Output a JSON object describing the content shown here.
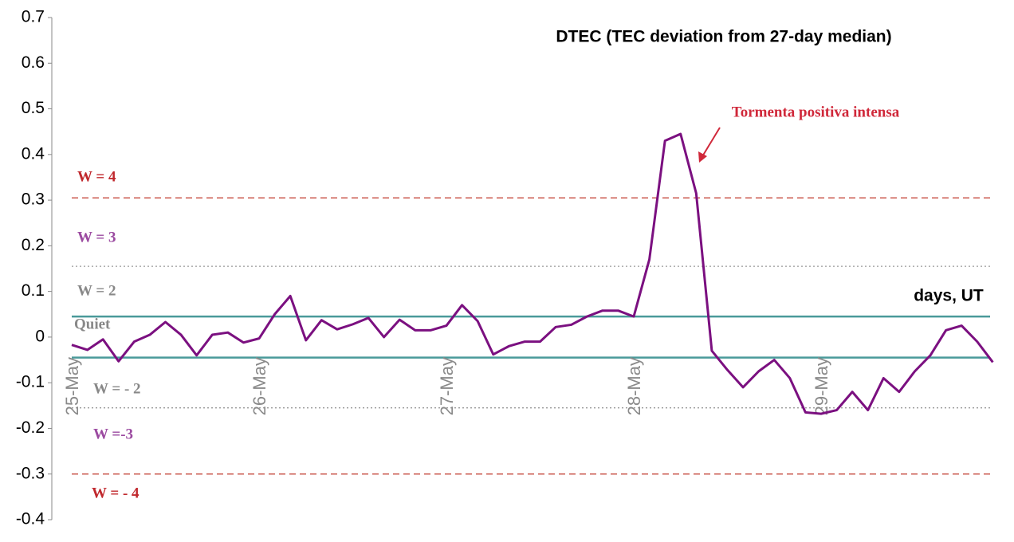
{
  "chart_data": {
    "type": "line",
    "title": "DTEC (TEC deviation from 27-day median)",
    "x_label": "days, UT",
    "annotation": "Tormenta positiva intensa",
    "categories": [
      "25-May",
      null,
      null,
      null,
      null,
      null,
      null,
      null,
      null,
      null,
      null,
      null,
      "26-May",
      null,
      null,
      null,
      null,
      null,
      null,
      null,
      null,
      null,
      null,
      null,
      "27-May",
      null,
      null,
      null,
      null,
      null,
      null,
      null,
      null,
      null,
      null,
      null,
      "28-May",
      null,
      null,
      null,
      null,
      null,
      null,
      null,
      null,
      null,
      null,
      null,
      "29-May",
      null,
      null,
      null,
      null,
      null,
      null,
      null,
      null,
      null,
      null,
      null
    ],
    "series": [
      {
        "color": "#7b1080",
        "values": [
          -0.017,
          -0.028,
          -0.005,
          -0.053,
          -0.01,
          0.005,
          0.033,
          0.005,
          -0.04,
          0.005,
          0.01,
          -0.012,
          -0.003,
          0.05,
          0.09,
          -0.007,
          0.037,
          0.017,
          0.028,
          0.042,
          0.0,
          0.038,
          0.015,
          0.015,
          0.025,
          0.07,
          0.035,
          -0.038,
          -0.02,
          -0.01,
          -0.01,
          0.022,
          0.027,
          0.045,
          0.058,
          0.058,
          0.045,
          0.17,
          0.43,
          0.445,
          0.315,
          -0.03,
          -0.072,
          -0.11,
          -0.075,
          -0.05,
          -0.09,
          -0.165,
          -0.168,
          -0.16,
          -0.12,
          -0.16,
          -0.09,
          -0.12,
          -0.075,
          -0.04,
          0.015,
          0.025,
          -0.01,
          -0.055
        ]
      }
    ],
    "ylim": [
      -0.4,
      0.7
    ],
    "yticks": [
      -0.4,
      -0.3,
      -0.2,
      -0.1,
      0,
      0.1,
      0.2,
      0.3,
      0.4,
      0.5,
      0.6,
      0.7
    ],
    "reference_lines": [
      {
        "value": 0.305,
        "color": "#c0392b",
        "style": "dashed"
      },
      {
        "value": 0.155,
        "color": "#999999",
        "style": "dotted"
      },
      {
        "value": 0.045,
        "color": "#4a9a9a",
        "style": "solid"
      },
      {
        "value": -0.045,
        "color": "#4a9a9a",
        "style": "solid"
      },
      {
        "value": -0.155,
        "color": "#999999",
        "style": "dotted"
      },
      {
        "value": -0.3,
        "color": "#c0392b",
        "style": "dashed"
      }
    ],
    "zone_labels": [
      {
        "text": "W = 4",
        "color": "#c0282d"
      },
      {
        "text": "W = 3",
        "color": "#9b4aa0"
      },
      {
        "text": "W = 2",
        "color": "#888888"
      },
      {
        "text": "Quiet",
        "color": "#888888"
      },
      {
        "text": "W = - 2",
        "color": "#888888"
      },
      {
        "text": "W =-3",
        "color": "#9b4aa0"
      },
      {
        "text": "W = - 4",
        "color": "#c0282d"
      }
    ]
  }
}
